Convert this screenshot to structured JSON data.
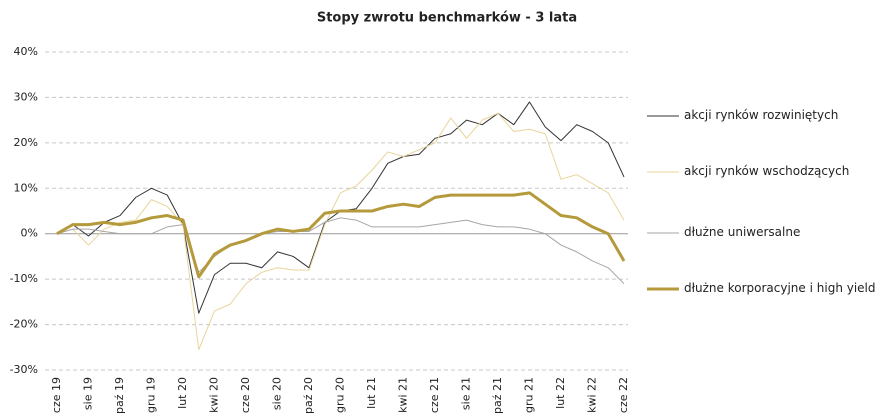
{
  "chart_data": {
    "type": "line",
    "title": "Stopy zwrotu benchmarków - 3 lata",
    "categories": [
      "cze 19",
      null,
      "sie 19",
      null,
      "paź 19",
      null,
      "gru 19",
      null,
      "lut 20",
      null,
      "kwi 20",
      null,
      "cze 20",
      null,
      "sie 20",
      null,
      "paź 20",
      null,
      "gru 20",
      null,
      "lut 21",
      null,
      "kwi 21",
      null,
      "cze 21",
      null,
      "sie 21",
      null,
      "paź 21",
      null,
      "gru 21",
      null,
      "lut 22",
      null,
      "kwi 22",
      null,
      "cze 22"
    ],
    "ylim": [
      -30,
      40
    ],
    "yticks": [
      {
        "value": -30,
        "label": "-30%"
      },
      {
        "value": -20,
        "label": "-20%"
      },
      {
        "value": -10,
        "label": "-10%"
      },
      {
        "value": 0,
        "label": "0%"
      },
      {
        "value": 10,
        "label": "10%"
      },
      {
        "value": 20,
        "label": "20%"
      },
      {
        "value": 30,
        "label": "30%"
      },
      {
        "value": 40,
        "label": "40%"
      }
    ],
    "grid": true,
    "legend": "right",
    "series": [
      {
        "name": "akcji rynków rozwiniętych",
        "color": "#333333",
        "width": 1,
        "values": [
          0,
          2,
          -0.5,
          2.5,
          4,
          8,
          10,
          8.5,
          2,
          -17.5,
          -9,
          -6.5,
          -6.5,
          -7.5,
          -4,
          -5,
          -7.5,
          2.5,
          5,
          5.5,
          10,
          15.5,
          17,
          17.5,
          21,
          22,
          25,
          24,
          26.5,
          24,
          29,
          23.5,
          20.5,
          24,
          22.5,
          20,
          12.5
        ]
      },
      {
        "name": "akcji rynków wschodzących",
        "color": "#e8d49a",
        "width": 1,
        "values": [
          0,
          1,
          -2.5,
          1,
          2.5,
          3,
          7.5,
          6,
          2,
          -25.5,
          -17,
          -15.5,
          -11,
          -8.5,
          -7.5,
          -8,
          -8,
          2,
          9,
          10.5,
          14,
          18,
          17,
          18.5,
          20,
          25.5,
          21,
          25,
          26.5,
          22.5,
          23,
          22,
          12,
          13,
          11,
          9,
          3
        ]
      },
      {
        "name": "dłużne uniwersalne",
        "color": "#a6a6a6",
        "width": 1,
        "values": [
          0,
          1,
          1,
          0.5,
          0,
          0,
          0,
          1.5,
          2,
          -8.5,
          -5,
          -2.5,
          -1.5,
          0,
          0.5,
          0.5,
          0.5,
          2.5,
          3.5,
          3,
          1.5,
          1.5,
          1.5,
          1.5,
          2,
          2.5,
          3,
          2,
          1.5,
          1.5,
          1,
          0,
          -2.5,
          -4,
          -6,
          -7.5,
          -11
        ]
      },
      {
        "name": "dłużne korporacyjne i high yield",
        "color": "#b59a3c",
        "width": 3,
        "values": [
          0,
          2,
          2,
          2.5,
          2,
          2.5,
          3.5,
          4,
          3,
          -9.5,
          -4.5,
          -2.5,
          -1.5,
          0,
          1,
          0.5,
          1,
          4.5,
          5,
          5,
          5,
          6,
          6.5,
          6,
          8,
          8.5,
          8.5,
          8.5,
          8.5,
          8.5,
          9,
          6.5,
          4,
          3.5,
          1.5,
          0,
          -6
        ]
      }
    ]
  }
}
